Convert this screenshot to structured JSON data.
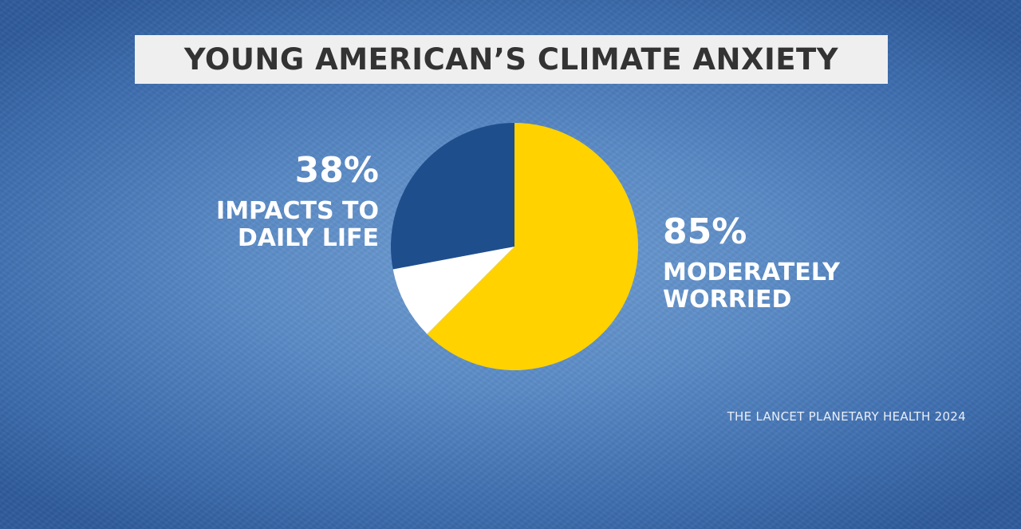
{
  "chart_data": {
    "type": "pie",
    "title": "YOUNG AMERICAN’S CLIMATE ANXIETY",
    "slices": [
      {
        "label": "MODERATELY WORRIED",
        "value": 85,
        "display": "85%",
        "color": "#ffd200"
      },
      {
        "label": "",
        "value": 13,
        "display": "",
        "color": "#ffffff"
      },
      {
        "label": "IMPACTS TO DAILY LIFE",
        "value": 38,
        "display": "38%",
        "color": "#1f4e8c"
      }
    ],
    "labels": {
      "left_pct": "38%",
      "left_desc_line1": "IMPACTS TO",
      "left_desc_line2": "DAILY LIFE",
      "right_pct": "85%",
      "right_desc_line1": "MODERATELY",
      "right_desc_line2": "WORRIED"
    },
    "source": "THE LANCET PLANETARY HEALTH 2024"
  },
  "colors": {
    "yellow": "#ffd200",
    "navy": "#1f4e8c",
    "white": "#ffffff",
    "title_bg": "#efefef",
    "title_text": "#333333"
  }
}
